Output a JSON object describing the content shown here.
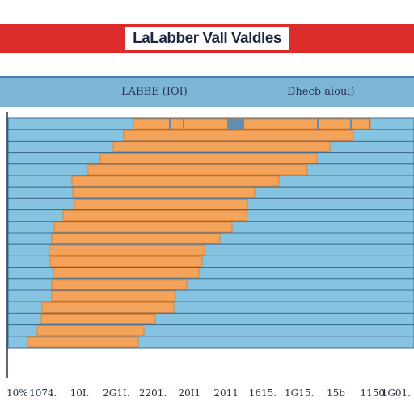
{
  "title": "LaLabber ValI Valdles",
  "header": {
    "left": "LABBE (IOI)",
    "right": "Dhecb aioul)"
  },
  "colors": {
    "title_band": "#dc2b2b",
    "bar": "#f4a35a",
    "bar_edge": "#d9843a",
    "row": "#86c3e0",
    "row_edge": "#3e6f98",
    "header": "#7db6d5"
  },
  "chart_data": {
    "type": "bar",
    "orientation": "horizontal",
    "title": "LaLabber ValI Valdles",
    "x_tick_labels": [
      "10%",
      "1074.",
      "10I.",
      "2G1I.",
      "2201.",
      "20I1",
      "2011",
      "1615.",
      "1G15.",
      "15b",
      "1150",
      "1G01."
    ],
    "series": [
      {
        "segments": [
          [
            165,
            458
          ]
        ]
      },
      {
        "segments": [
          [
            153,
            437
          ]
        ]
      },
      {
        "segments": [
          [
            140,
            408
          ]
        ]
      },
      {
        "segments": [
          [
            124,
            392
          ]
        ]
      },
      {
        "segments": [
          [
            109,
            380
          ]
        ]
      },
      {
        "segments": [
          [
            89,
            345
          ]
        ]
      },
      {
        "segments": [
          [
            90,
            315
          ]
        ]
      },
      {
        "segments": [
          [
            92,
            306
          ]
        ]
      },
      {
        "segments": [
          [
            78,
            305
          ]
        ]
      },
      {
        "segments": [
          [
            67,
            287
          ]
        ]
      },
      {
        "segments": [
          [
            64,
            272
          ]
        ]
      },
      {
        "segments": [
          [
            61,
            253
          ]
        ]
      },
      {
        "segments": [
          [
            62,
            250
          ]
        ]
      },
      {
        "segments": [
          [
            66,
            246
          ]
        ]
      },
      {
        "segments": [
          [
            64,
            231
          ]
        ]
      },
      {
        "segments": [
          [
            64,
            217
          ]
        ]
      },
      {
        "segments": [
          [
            52,
            215
          ]
        ]
      },
      {
        "segments": [
          [
            51,
            192
          ]
        ]
      },
      {
        "segments": [
          [
            46,
            178
          ]
        ]
      },
      {
        "segments": [
          [
            34,
            171
          ]
        ]
      }
    ],
    "grid": true
  }
}
